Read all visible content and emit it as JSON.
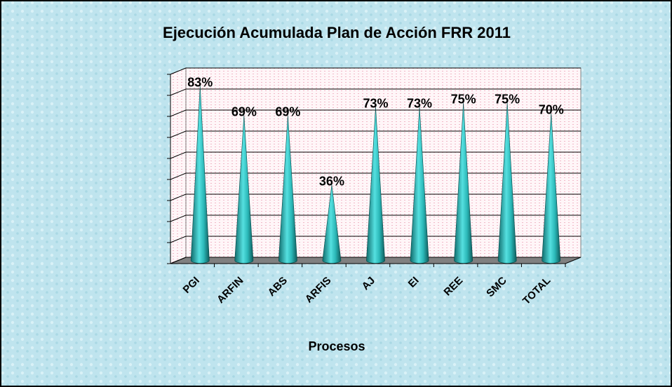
{
  "chart_data": {
    "type": "bar",
    "title": "Ejecución Acumulada Plan de Acción FRR 2011",
    "x_label": "Procesos",
    "categories": [
      "PGI",
      "ARFIN",
      "ABS",
      "ARFIS",
      "AJ",
      "EI",
      "REE",
      "SMC",
      "TOTAL"
    ],
    "values": [
      83,
      69,
      69,
      36,
      73,
      73,
      75,
      75,
      70
    ],
    "value_labels": [
      "83%",
      "69%",
      "69%",
      "36%",
      "73%",
      "73%",
      "75%",
      "75%",
      "70%"
    ],
    "color": "#33c6c6",
    "ylim": [
      0,
      90
    ],
    "yticks": [
      0,
      10,
      20,
      30,
      40,
      50,
      60,
      70,
      80,
      90
    ],
    "grid": true
  }
}
